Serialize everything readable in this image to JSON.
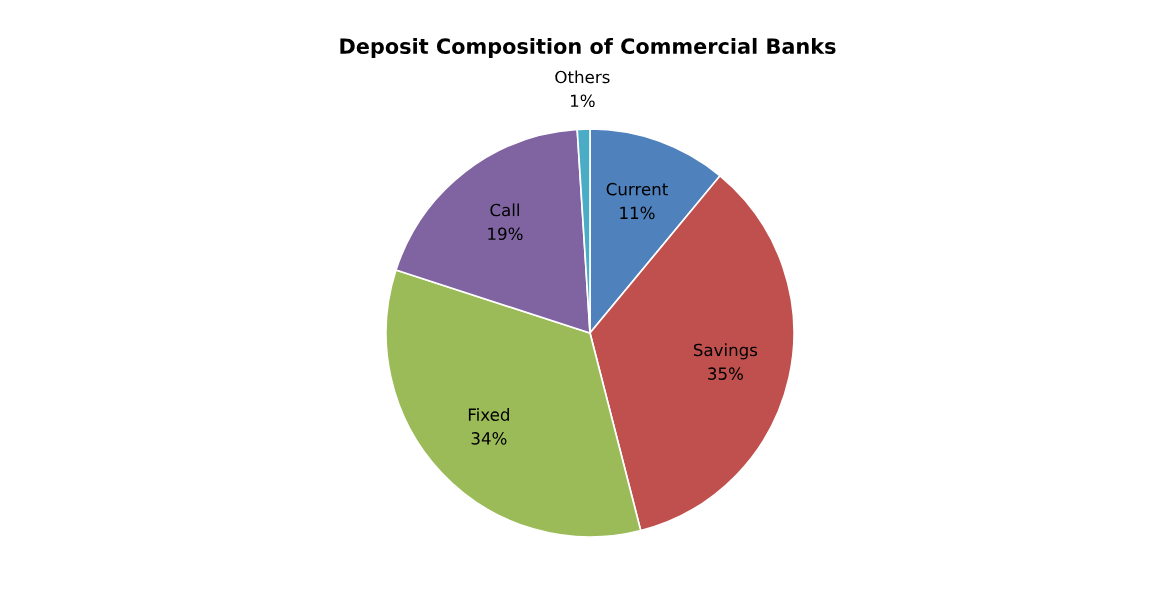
{
  "chart_data": {
    "type": "pie",
    "title": "Deposit Composition of Commercial Banks",
    "categories": [
      "Current",
      "Savings",
      "Fixed",
      "Call",
      "Others"
    ],
    "values": [
      11,
      35,
      34,
      19,
      1
    ],
    "colors": [
      "#4f81bd",
      "#c0504d",
      "#9bbb59",
      "#8064a2",
      "#4bacc6"
    ],
    "value_labels": [
      "11%",
      "35%",
      "34%",
      "19%",
      "1%"
    ],
    "legend": false
  }
}
